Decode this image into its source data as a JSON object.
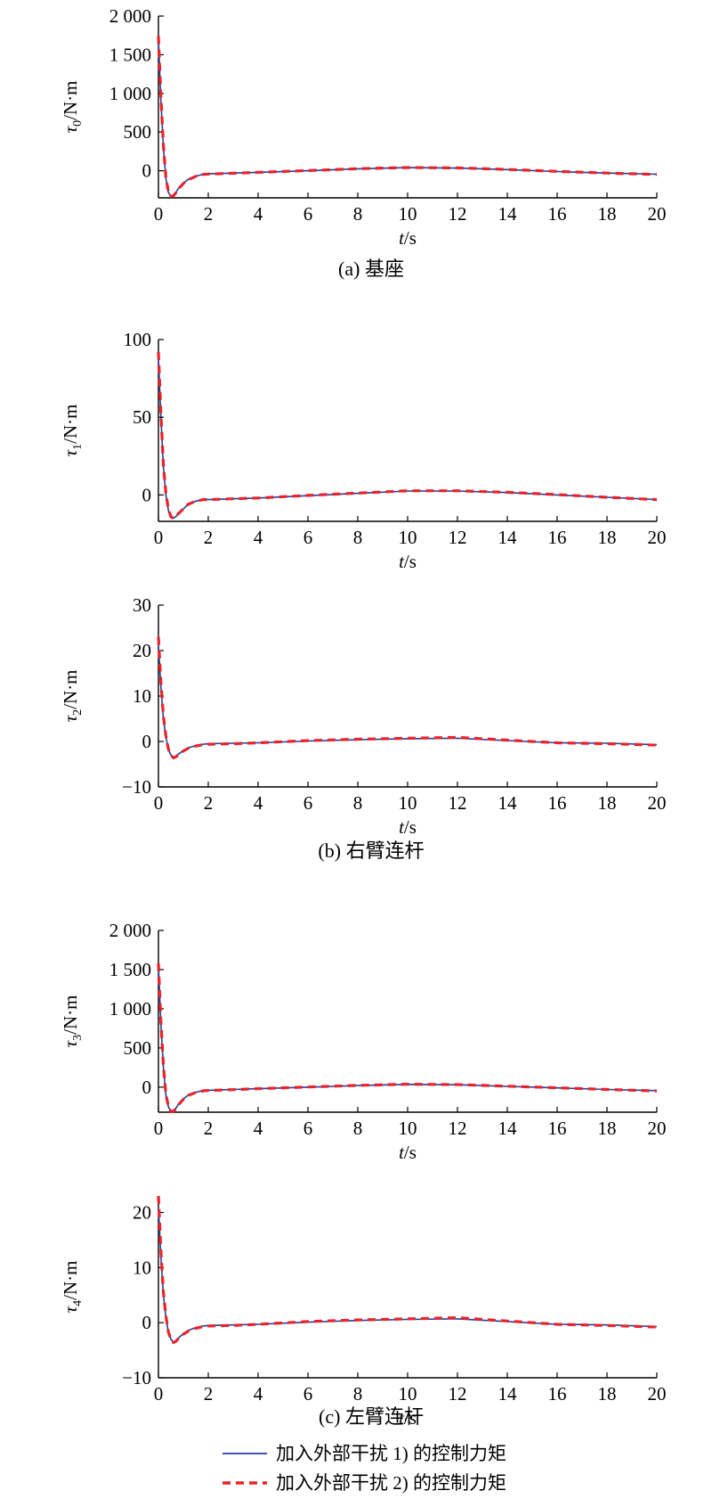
{
  "colors": {
    "series1": "#1f3fa6",
    "series2": "#e8232a",
    "axis": "#000000"
  },
  "legend": {
    "items": [
      {
        "label": "加入外部干扰 1) 的控制力矩",
        "style": "solid",
        "color": "#1f3fa6"
      },
      {
        "label": "加入外部干扰 2) 的控制力矩",
        "style": "dashed",
        "color": "#e8232a"
      }
    ],
    "placement": "bottom-center"
  },
  "captions": [
    "(a) 基座",
    "(b) 右臂连杆",
    "(c) 左臂连杆"
  ],
  "chart_data": [
    {
      "type": "line",
      "ylabel_sym": "τ",
      "ylabel_sub": "0",
      "ylabel_unit": "/N·m",
      "xlabel_sym": "t",
      "xlabel_unit": "/s",
      "xlim": [
        0,
        20
      ],
      "ylim": [
        -350,
        2000
      ],
      "xticks": [
        0,
        2,
        4,
        6,
        8,
        10,
        12,
        14,
        16,
        18,
        20
      ],
      "xtick_labels": [
        "0",
        "2",
        "4",
        "6",
        "8",
        "10",
        "12",
        "14",
        "16",
        "18",
        "20"
      ],
      "yticks": [
        0,
        500,
        1000,
        1500,
        2000
      ],
      "ytick_labels": [
        "0",
        "500",
        "1 000",
        "1 500",
        "2 000"
      ],
      "series": [
        {
          "x": [
            0,
            0.1,
            0.2,
            0.3,
            0.4,
            0.5,
            0.6,
            0.7,
            0.8,
            1.0,
            1.2,
            1.5,
            1.8,
            2,
            3,
            4,
            6,
            8,
            10,
            12,
            14,
            16,
            18,
            20
          ],
          "y": [
            1700,
            900,
            300,
            -100,
            -280,
            -330,
            -320,
            -280,
            -230,
            -160,
            -110,
            -70,
            -45,
            -40,
            -30,
            -20,
            0,
            25,
            40,
            35,
            15,
            -10,
            -30,
            -45
          ]
        },
        {
          "x": [
            0,
            0.1,
            0.2,
            0.3,
            0.4,
            0.5,
            0.6,
            0.7,
            0.8,
            1.0,
            1.2,
            1.5,
            1.8,
            2,
            3,
            4,
            6,
            8,
            10,
            12,
            14,
            16,
            18,
            20
          ],
          "y": [
            1740,
            950,
            330,
            -90,
            -270,
            -330,
            -325,
            -285,
            -235,
            -165,
            -115,
            -72,
            -47,
            -42,
            -32,
            -20,
            2,
            27,
            42,
            37,
            17,
            -8,
            -30,
            -48
          ]
        }
      ]
    },
    {
      "type": "line",
      "ylabel_sym": "τ",
      "ylabel_sub": "1",
      "ylabel_unit": "/N·m",
      "xlabel_sym": "t",
      "xlabel_unit": "/s",
      "xlim": [
        0,
        20
      ],
      "ylim": [
        -17,
        100
      ],
      "xticks": [
        0,
        2,
        4,
        6,
        8,
        10,
        12,
        14,
        16,
        18,
        20
      ],
      "xtick_labels": [
        "0",
        "2",
        "4",
        "6",
        "8",
        "10",
        "12",
        "14",
        "16",
        "18",
        "20"
      ],
      "yticks": [
        0,
        50,
        100
      ],
      "ytick_labels": [
        "0",
        "50",
        "100"
      ],
      "series": [
        {
          "x": [
            0,
            0.1,
            0.2,
            0.3,
            0.4,
            0.5,
            0.6,
            0.7,
            0.8,
            1.0,
            1.2,
            1.5,
            1.8,
            2,
            3,
            4,
            6,
            8,
            10,
            12,
            14,
            16,
            18,
            20
          ],
          "y": [
            88,
            50,
            18,
            0,
            -10,
            -14,
            -15,
            -14,
            -12,
            -9,
            -6,
            -4,
            -3,
            -3,
            -2.5,
            -2,
            -0.5,
            1,
            2.5,
            2.5,
            1.5,
            0,
            -1.5,
            -3
          ]
        },
        {
          "x": [
            0,
            0.1,
            0.2,
            0.3,
            0.4,
            0.5,
            0.6,
            0.7,
            0.8,
            1.0,
            1.2,
            1.5,
            1.8,
            2,
            3,
            4,
            6,
            8,
            10,
            12,
            14,
            16,
            18,
            20
          ],
          "y": [
            92,
            52,
            19,
            1,
            -9,
            -14,
            -15,
            -14,
            -12,
            -9,
            -6,
            -4,
            -3,
            -3,
            -2.5,
            -2,
            -0.3,
            1.2,
            2.7,
            2.7,
            1.7,
            0.2,
            -1.5,
            -3
          ]
        }
      ]
    },
    {
      "type": "line",
      "ylabel_sym": "τ",
      "ylabel_sub": "2",
      "ylabel_unit": "/N·m",
      "xlabel_sym": "t",
      "xlabel_unit": "/s",
      "xlim": [
        0,
        20
      ],
      "ylim": [
        -10,
        30
      ],
      "xticks": [
        0,
        2,
        4,
        6,
        8,
        10,
        12,
        14,
        16,
        18,
        20
      ],
      "xtick_labels": [
        "0",
        "2",
        "4",
        "6",
        "8",
        "10",
        "12",
        "14",
        "16",
        "18",
        "20"
      ],
      "yticks": [
        -10,
        0,
        10,
        20,
        30
      ],
      "ytick_labels": [
        "−10",
        "0",
        "10",
        "20",
        "30"
      ],
      "series": [
        {
          "x": [
            0,
            0.1,
            0.2,
            0.3,
            0.4,
            0.5,
            0.6,
            0.7,
            0.8,
            1.0,
            1.2,
            1.5,
            1.8,
            2,
            3,
            4,
            6,
            8,
            10,
            12,
            14,
            16,
            18,
            20
          ],
          "y": [
            21,
            12,
            5,
            1,
            -1.8,
            -3,
            -3.5,
            -3.3,
            -2.8,
            -2,
            -1.4,
            -0.9,
            -0.6,
            -0.5,
            -0.4,
            -0.3,
            0.1,
            0.4,
            0.6,
            0.7,
            0.2,
            -0.3,
            -0.4,
            -0.7
          ]
        },
        {
          "x": [
            0,
            0.1,
            0.2,
            0.3,
            0.4,
            0.5,
            0.6,
            0.7,
            0.8,
            1.0,
            1.2,
            1.5,
            1.8,
            2,
            3,
            4,
            6,
            8,
            10,
            12,
            14,
            16,
            18,
            20
          ],
          "y": [
            23,
            13,
            5.5,
            1.2,
            -1.7,
            -3,
            -3.6,
            -3.4,
            -2.9,
            -2.1,
            -1.5,
            -1,
            -0.7,
            -0.6,
            -0.5,
            -0.3,
            0.2,
            0.5,
            0.7,
            0.9,
            0.3,
            -0.3,
            -0.5,
            -0.8
          ]
        }
      ]
    },
    {
      "type": "line",
      "ylabel_sym": "τ",
      "ylabel_sub": "3",
      "ylabel_unit": "/N·m",
      "xlabel_sym": "t",
      "xlabel_unit": "/s",
      "xlim": [
        0,
        20
      ],
      "ylim": [
        -320,
        2000
      ],
      "xticks": [
        0,
        2,
        4,
        6,
        8,
        10,
        12,
        14,
        16,
        18,
        20
      ],
      "xtick_labels": [
        "0",
        "2",
        "4",
        "6",
        "8",
        "10",
        "12",
        "14",
        "16",
        "18",
        "20"
      ],
      "yticks": [
        0,
        500,
        1000,
        1500,
        2000
      ],
      "ytick_labels": [
        "0",
        "500",
        "1 000",
        "1 500",
        "2 000"
      ],
      "series": [
        {
          "x": [
            0,
            0.1,
            0.2,
            0.3,
            0.4,
            0.5,
            0.6,
            0.7,
            0.8,
            1.0,
            1.2,
            1.5,
            1.8,
            2,
            3,
            4,
            6,
            8,
            10,
            12,
            14,
            16,
            18,
            20
          ],
          "y": [
            1550,
            800,
            250,
            -100,
            -250,
            -310,
            -305,
            -270,
            -220,
            -150,
            -100,
            -65,
            -45,
            -40,
            -30,
            -20,
            0,
            20,
            35,
            30,
            10,
            -10,
            -30,
            -45
          ]
        },
        {
          "x": [
            0,
            0.1,
            0.2,
            0.3,
            0.4,
            0.5,
            0.6,
            0.7,
            0.8,
            1.0,
            1.2,
            1.5,
            1.8,
            2,
            3,
            4,
            6,
            8,
            10,
            12,
            14,
            16,
            18,
            20
          ],
          "y": [
            1580,
            830,
            270,
            -90,
            -245,
            -310,
            -310,
            -275,
            -225,
            -155,
            -105,
            -68,
            -47,
            -42,
            -32,
            -20,
            2,
            22,
            37,
            32,
            12,
            -8,
            -30,
            -48
          ]
        }
      ]
    },
    {
      "type": "line",
      "ylabel_sym": "τ",
      "ylabel_sub": "4",
      "ylabel_unit": "/N·m",
      "xlabel_sym": "t",
      "xlabel_unit": "/s",
      "xlim": [
        0,
        20
      ],
      "ylim": [
        -10,
        23
      ],
      "xticks": [
        0,
        2,
        4,
        6,
        8,
        10,
        12,
        14,
        16,
        18,
        20
      ],
      "xtick_labels": [
        "0",
        "2",
        "4",
        "6",
        "8",
        "10",
        "12",
        "14",
        "16",
        "18",
        "20"
      ],
      "yticks": [
        -10,
        0,
        10,
        20
      ],
      "ytick_labels": [
        "−10",
        "0",
        "10",
        "20"
      ],
      "series": [
        {
          "x": [
            0,
            0.1,
            0.2,
            0.3,
            0.4,
            0.5,
            0.6,
            0.7,
            0.8,
            1.0,
            1.2,
            1.5,
            1.8,
            2,
            3,
            4,
            6,
            8,
            10,
            12,
            14,
            16,
            18,
            20
          ],
          "y": [
            21,
            12,
            5,
            1,
            -1.8,
            -3,
            -3.5,
            -3.3,
            -2.8,
            -2,
            -1.4,
            -0.9,
            -0.6,
            -0.5,
            -0.4,
            -0.3,
            0.1,
            0.4,
            0.6,
            0.7,
            0.2,
            -0.3,
            -0.4,
            -0.7
          ]
        },
        {
          "x": [
            0,
            0.1,
            0.2,
            0.3,
            0.4,
            0.5,
            0.6,
            0.7,
            0.8,
            1.0,
            1.2,
            1.5,
            1.8,
            2,
            3,
            4,
            6,
            8,
            10,
            12,
            14,
            16,
            18,
            20
          ],
          "y": [
            23,
            13,
            5.5,
            1.2,
            -1.7,
            -3,
            -3.6,
            -3.4,
            -2.9,
            -2.1,
            -1.5,
            -1,
            -0.7,
            -0.6,
            -0.5,
            -0.3,
            0.2,
            0.5,
            0.7,
            0.9,
            0.3,
            -0.3,
            -0.5,
            -0.8
          ]
        }
      ]
    }
  ]
}
